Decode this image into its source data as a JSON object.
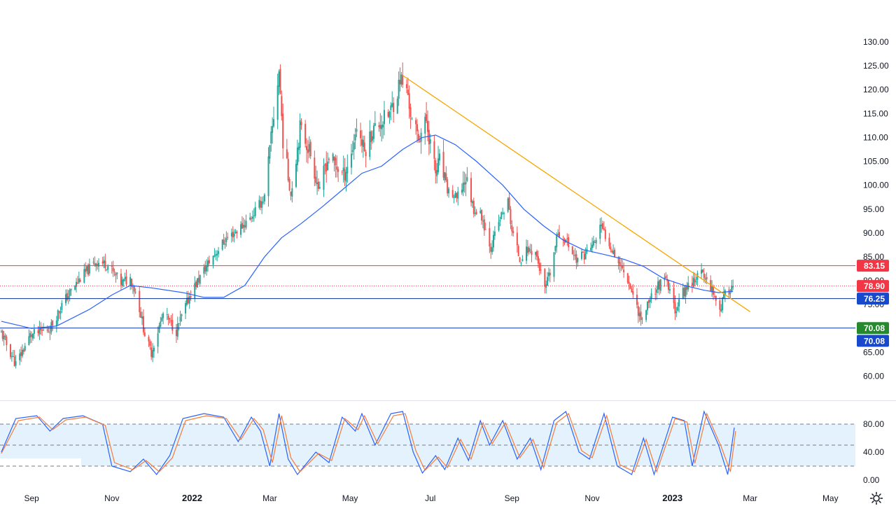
{
  "chart_data": [
    {
      "type": "candlestick",
      "title": "",
      "y_axis": {
        "ticks": [
          "130.00",
          "125.00",
          "120.00",
          "115.00",
          "110.00",
          "105.00",
          "100.00",
          "95.00",
          "90.00",
          "85.00",
          "80.00",
          "75.00",
          "65.00",
          "60.00"
        ],
        "range": [
          57,
          133
        ]
      },
      "x_axis": {
        "range": [
          "2021-08-08",
          "2023-05-20"
        ],
        "ticks": [
          {
            "label": "Sep",
            "date": "2021-09-01",
            "bold": false
          },
          {
            "label": "Nov",
            "date": "2021-11-01",
            "bold": false
          },
          {
            "label": "2022",
            "date": "2022-01-01",
            "bold": true
          },
          {
            "label": "Mar",
            "date": "2022-03-01",
            "bold": false
          },
          {
            "label": "May",
            "date": "2022-05-01",
            "bold": false
          },
          {
            "label": "Jul",
            "date": "2022-07-01",
            "bold": false
          },
          {
            "label": "Sep",
            "date": "2022-09-01",
            "bold": false
          },
          {
            "label": "Nov",
            "date": "2022-11-01",
            "bold": false
          },
          {
            "label": "2023",
            "date": "2023-01-01",
            "bold": true
          },
          {
            "label": "Mar",
            "date": "2023-03-01",
            "bold": false
          },
          {
            "label": "May",
            "date": "2023-05-01",
            "bold": false
          }
        ]
      },
      "close_path": [
        [
          "2021-08-09",
          69.0
        ],
        [
          "2021-08-20",
          62.5
        ],
        [
          "2021-08-31",
          68.5
        ],
        [
          "2021-09-15",
          70.0
        ],
        [
          "2021-09-25",
          75.5
        ],
        [
          "2021-10-08",
          80.5
        ],
        [
          "2021-10-20",
          84.0
        ],
        [
          "2021-10-28",
          83.5
        ],
        [
          "2021-11-08",
          79.5
        ],
        [
          "2021-11-15",
          80.5
        ],
        [
          "2021-11-20",
          77.0
        ],
        [
          "2021-11-27",
          67.5
        ],
        [
          "2021-12-01",
          65.0
        ],
        [
          "2021-12-10",
          73.0
        ],
        [
          "2021-12-20",
          69.5
        ],
        [
          "2021-12-31",
          77.5
        ],
        [
          "2022-01-14",
          84.0
        ],
        [
          "2022-01-26",
          88.5
        ],
        [
          "2022-02-04",
          90.5
        ],
        [
          "2022-02-14",
          93.0
        ],
        [
          "2022-02-25",
          97.5
        ],
        [
          "2022-03-03",
          112.0
        ],
        [
          "2022-03-08",
          124.0
        ],
        [
          "2022-03-11",
          109.5
        ],
        [
          "2022-03-17",
          98.0
        ],
        [
          "2022-03-24",
          112.0
        ],
        [
          "2022-03-31",
          107.5
        ],
        [
          "2022-04-08",
          98.5
        ],
        [
          "2022-04-12",
          104.0
        ],
        [
          "2022-04-15",
          106.0
        ],
        [
          "2022-04-22",
          103.5
        ],
        [
          "2022-04-26",
          102.0
        ],
        [
          "2022-05-02",
          106.5
        ],
        [
          "2022-05-06",
          112.5
        ],
        [
          "2022-05-12",
          107.0
        ],
        [
          "2022-05-18",
          111.5
        ],
        [
          "2022-05-24",
          113.0
        ],
        [
          "2022-05-31",
          115.0
        ],
        [
          "2022-06-06",
          119.5
        ],
        [
          "2022-06-08",
          122.5
        ],
        [
          "2022-06-14",
          119.0
        ],
        [
          "2022-06-17",
          113.0
        ],
        [
          "2022-06-22",
          110.0
        ],
        [
          "2022-06-28",
          113.5
        ],
        [
          "2022-07-05",
          102.5
        ],
        [
          "2022-07-08",
          105.0
        ],
        [
          "2022-07-14",
          99.0
        ],
        [
          "2022-07-21",
          97.0
        ],
        [
          "2022-07-28",
          101.5
        ],
        [
          "2022-08-03",
          95.0
        ],
        [
          "2022-08-09",
          93.5
        ],
        [
          "2022-08-16",
          87.0
        ],
        [
          "2022-08-23",
          93.0
        ],
        [
          "2022-08-29",
          96.5
        ],
        [
          "2022-09-01",
          90.5
        ],
        [
          "2022-09-07",
          84.5
        ],
        [
          "2022-09-13",
          86.5
        ],
        [
          "2022-09-19",
          86.0
        ],
        [
          "2022-09-26",
          78.0
        ],
        [
          "2022-09-30",
          81.5
        ],
        [
          "2022-10-06",
          90.0
        ],
        [
          "2022-10-12",
          88.5
        ],
        [
          "2022-10-20",
          84.5
        ],
        [
          "2022-10-26",
          85.5
        ],
        [
          "2022-11-03",
          88.0
        ],
        [
          "2022-11-07",
          91.5
        ],
        [
          "2022-11-14",
          88.0
        ],
        [
          "2022-11-21",
          84.0
        ],
        [
          "2022-11-28",
          80.5
        ],
        [
          "2022-12-05",
          74.5
        ],
        [
          "2022-12-09",
          71.5
        ],
        [
          "2022-12-14",
          76.0
        ],
        [
          "2022-12-21",
          79.0
        ],
        [
          "2022-12-27",
          80.0
        ],
        [
          "2023-01-03",
          74.0
        ],
        [
          "2023-01-09",
          77.5
        ],
        [
          "2023-01-16",
          80.0
        ],
        [
          "2023-01-23",
          81.5
        ],
        [
          "2023-01-30",
          79.0
        ],
        [
          "2023-02-06",
          74.0
        ],
        [
          "2023-02-09",
          76.5
        ],
        [
          "2023-02-14",
          78.5
        ],
        [
          "2023-02-16",
          78.9
        ]
      ],
      "moving_average": {
        "color": "#2962ff",
        "points": [
          [
            "2021-08-09",
            71.5
          ],
          [
            "2021-09-01",
            70.0
          ],
          [
            "2021-09-20",
            70.5
          ],
          [
            "2021-10-15",
            74.0
          ],
          [
            "2021-11-01",
            77.0
          ],
          [
            "2021-11-15",
            79.0
          ],
          [
            "2021-12-01",
            78.5
          ],
          [
            "2021-12-25",
            77.5
          ],
          [
            "2022-01-10",
            76.5
          ],
          [
            "2022-01-25",
            76.5
          ],
          [
            "2022-02-10",
            79.0
          ],
          [
            "2022-02-25",
            85.0
          ],
          [
            "2022-03-10",
            89.0
          ],
          [
            "2022-03-25",
            92.0
          ],
          [
            "2022-04-10",
            95.5
          ],
          [
            "2022-04-25",
            99.0
          ],
          [
            "2022-05-10",
            102.5
          ],
          [
            "2022-05-25",
            104.0
          ],
          [
            "2022-06-10",
            107.5
          ],
          [
            "2022-06-25",
            110.0
          ],
          [
            "2022-07-05",
            110.5
          ],
          [
            "2022-07-20",
            108.5
          ],
          [
            "2022-08-05",
            105.0
          ],
          [
            "2022-08-25",
            100.0
          ],
          [
            "2022-09-10",
            95.0
          ],
          [
            "2022-09-25",
            91.5
          ],
          [
            "2022-10-10",
            88.5
          ],
          [
            "2022-10-25",
            86.5
          ],
          [
            "2022-11-10",
            85.5
          ],
          [
            "2022-11-25",
            84.5
          ],
          [
            "2022-12-10",
            83.0
          ],
          [
            "2022-12-25",
            80.5
          ],
          [
            "2023-01-10",
            79.0
          ],
          [
            "2023-01-25",
            78.0
          ],
          [
            "2023-02-05",
            77.5
          ],
          [
            "2023-02-16",
            77.8
          ]
        ]
      },
      "trendline": {
        "color": "#f7a600",
        "from": [
          "2022-06-10",
          123.0
        ],
        "to": [
          "2023-03-01",
          73.5
        ]
      },
      "horizontal_lines": [
        {
          "value": 83.15,
          "color": "#f23645",
          "style": "solid"
        },
        {
          "value": 78.9,
          "color": "#f23645",
          "style": "dotted"
        },
        {
          "value": 76.25,
          "color": "#0c3299",
          "style": "solid"
        },
        {
          "value": 70.08,
          "color": "#0c3299",
          "style": "solid"
        }
      ],
      "price_badges": [
        {
          "label": "83.15",
          "value": 83.15,
          "color": "#f23645"
        },
        {
          "label": "78.90",
          "value": 78.9,
          "color": "#f23645"
        },
        {
          "label": "76.25",
          "value": 76.25,
          "color": "#1848cc"
        },
        {
          "label": "70.08",
          "value": 70.08,
          "color": "#26892d"
        },
        {
          "label": "70.08",
          "value": 67.4,
          "color": "#1848cc"
        }
      ],
      "colors": {
        "up": "#26a69a",
        "down": "#ef5350"
      }
    },
    {
      "type": "line",
      "title": "",
      "y_axis": {
        "ticks": [
          "80.00",
          "40.00",
          "0.00"
        ],
        "range": [
          0,
          100
        ]
      },
      "bands": [
        {
          "value": 80,
          "style": "dashed"
        },
        {
          "value": 50,
          "style": "dashed"
        },
        {
          "value": 20,
          "style": "dashed"
        }
      ],
      "band_fill": "#e3f2fd",
      "series": [
        {
          "color": "#2962ff",
          "points": [
            [
              "2021-08-09",
              40
            ],
            [
              "2021-08-20",
              88
            ],
            [
              "2021-09-05",
              92
            ],
            [
              "2021-09-15",
              70
            ],
            [
              "2021-09-25",
              88
            ],
            [
              "2021-10-10",
              92
            ],
            [
              "2021-10-25",
              80
            ],
            [
              "2021-11-01",
              20
            ],
            [
              "2021-11-15",
              12
            ],
            [
              "2021-11-25",
              30
            ],
            [
              "2021-12-05",
              8
            ],
            [
              "2021-12-15",
              35
            ],
            [
              "2021-12-25",
              88
            ],
            [
              "2022-01-10",
              95
            ],
            [
              "2022-01-25",
              90
            ],
            [
              "2022-02-05",
              55
            ],
            [
              "2022-02-15",
              90
            ],
            [
              "2022-02-22",
              70
            ],
            [
              "2022-03-01",
              20
            ],
            [
              "2022-03-08",
              95
            ],
            [
              "2022-03-15",
              30
            ],
            [
              "2022-03-22",
              8
            ],
            [
              "2022-04-05",
              40
            ],
            [
              "2022-04-15",
              25
            ],
            [
              "2022-04-25",
              90
            ],
            [
              "2022-05-05",
              70
            ],
            [
              "2022-05-10",
              95
            ],
            [
              "2022-05-20",
              50
            ],
            [
              "2022-06-01",
              95
            ],
            [
              "2022-06-10",
              98
            ],
            [
              "2022-06-18",
              40
            ],
            [
              "2022-06-25",
              10
            ],
            [
              "2022-07-05",
              35
            ],
            [
              "2022-07-12",
              15
            ],
            [
              "2022-07-22",
              60
            ],
            [
              "2022-07-30",
              28
            ],
            [
              "2022-08-08",
              85
            ],
            [
              "2022-08-15",
              50
            ],
            [
              "2022-08-25",
              85
            ],
            [
              "2022-09-05",
              30
            ],
            [
              "2022-09-15",
              60
            ],
            [
              "2022-09-23",
              15
            ],
            [
              "2022-10-03",
              85
            ],
            [
              "2022-10-12",
              98
            ],
            [
              "2022-10-22",
              40
            ],
            [
              "2022-10-30",
              30
            ],
            [
              "2022-11-10",
              95
            ],
            [
              "2022-11-20",
              20
            ],
            [
              "2022-12-01",
              8
            ],
            [
              "2022-12-10",
              60
            ],
            [
              "2022-12-18",
              8
            ],
            [
              "2023-01-01",
              90
            ],
            [
              "2023-01-10",
              85
            ],
            [
              "2023-01-16",
              20
            ],
            [
              "2023-01-25",
              98
            ],
            [
              "2023-02-05",
              50
            ],
            [
              "2023-02-12",
              8
            ],
            [
              "2023-02-17",
              75
            ]
          ]
        },
        {
          "color": "#f57c3c",
          "points": [
            [
              "2021-08-09",
              38
            ],
            [
              "2021-08-22",
              85
            ],
            [
              "2021-09-07",
              90
            ],
            [
              "2021-09-17",
              72
            ],
            [
              "2021-09-27",
              86
            ],
            [
              "2021-10-12",
              90
            ],
            [
              "2021-10-27",
              78
            ],
            [
              "2021-11-03",
              25
            ],
            [
              "2021-11-17",
              15
            ],
            [
              "2021-11-27",
              28
            ],
            [
              "2021-12-07",
              12
            ],
            [
              "2021-12-17",
              32
            ],
            [
              "2021-12-27",
              85
            ],
            [
              "2022-01-12",
              92
            ],
            [
              "2022-01-27",
              88
            ],
            [
              "2022-02-07",
              58
            ],
            [
              "2022-02-17",
              88
            ],
            [
              "2022-02-24",
              72
            ],
            [
              "2022-03-03",
              25
            ],
            [
              "2022-03-10",
              92
            ],
            [
              "2022-03-17",
              32
            ],
            [
              "2022-03-24",
              12
            ],
            [
              "2022-04-07",
              38
            ],
            [
              "2022-04-17",
              28
            ],
            [
              "2022-04-27",
              88
            ],
            [
              "2022-05-07",
              72
            ],
            [
              "2022-05-12",
              92
            ],
            [
              "2022-05-22",
              52
            ],
            [
              "2022-06-03",
              92
            ],
            [
              "2022-06-12",
              95
            ],
            [
              "2022-06-20",
              42
            ],
            [
              "2022-06-27",
              14
            ],
            [
              "2022-07-07",
              33
            ],
            [
              "2022-07-14",
              18
            ],
            [
              "2022-07-24",
              58
            ],
            [
              "2022-08-01",
              30
            ],
            [
              "2022-08-10",
              82
            ],
            [
              "2022-08-17",
              52
            ],
            [
              "2022-08-27",
              82
            ],
            [
              "2022-09-07",
              32
            ],
            [
              "2022-09-17",
              58
            ],
            [
              "2022-09-25",
              18
            ],
            [
              "2022-10-05",
              82
            ],
            [
              "2022-10-14",
              95
            ],
            [
              "2022-10-24",
              42
            ],
            [
              "2022-11-01",
              32
            ],
            [
              "2022-11-12",
              92
            ],
            [
              "2022-11-22",
              22
            ],
            [
              "2022-12-03",
              12
            ],
            [
              "2022-12-12",
              58
            ],
            [
              "2022-12-20",
              12
            ],
            [
              "2023-01-03",
              88
            ],
            [
              "2023-01-12",
              83
            ],
            [
              "2023-01-18",
              24
            ],
            [
              "2023-01-27",
              95
            ],
            [
              "2023-02-07",
              48
            ],
            [
              "2023-02-14",
              12
            ],
            [
              "2023-02-18",
              70
            ]
          ]
        }
      ]
    }
  ]
}
